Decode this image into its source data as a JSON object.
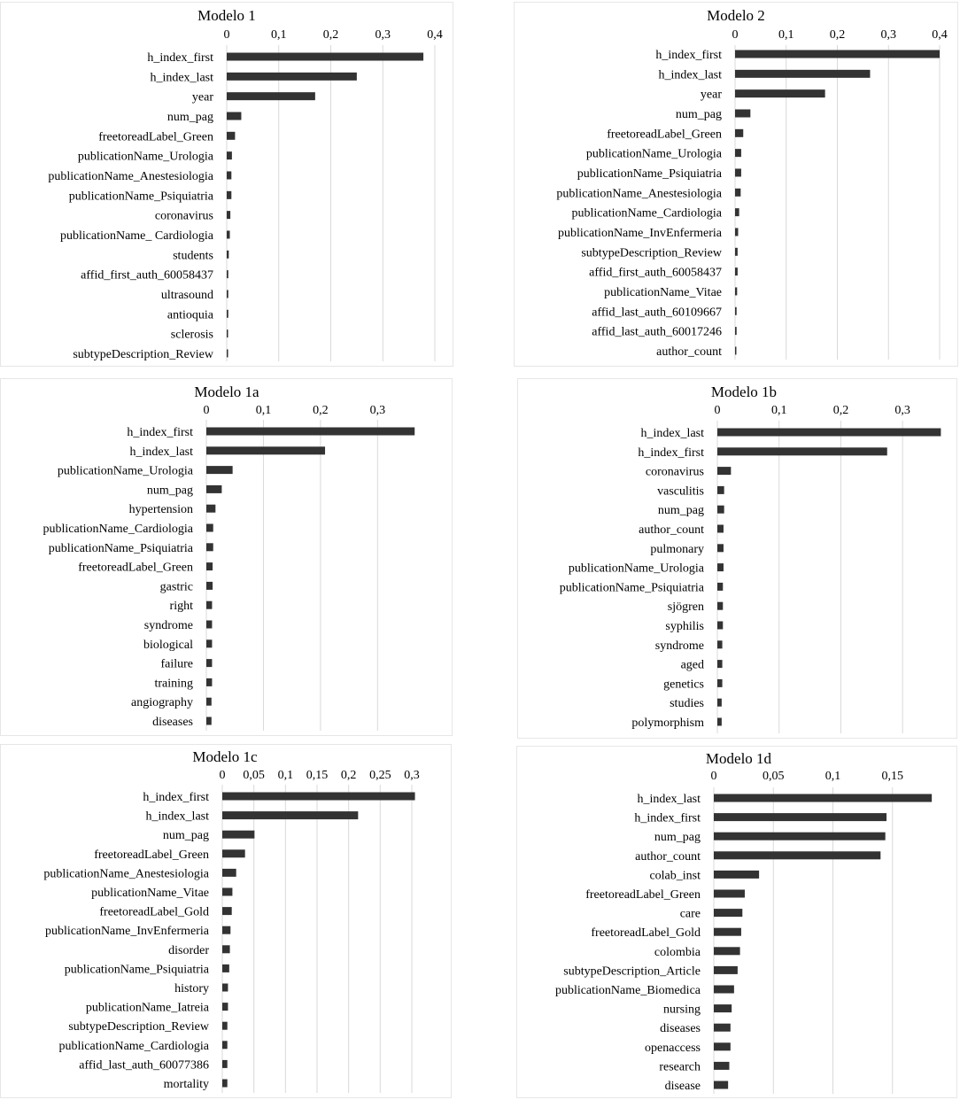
{
  "chart_data": [
    {
      "type": "bar",
      "orientation": "horizontal",
      "title": "Modelo 1",
      "xlim": [
        0,
        0.4
      ],
      "ticks": [
        0,
        0.1,
        0.2,
        0.3,
        0.4
      ],
      "tick_labels": [
        "0",
        "0,1",
        "0,2",
        "0,3",
        "0,4"
      ],
      "categories": [
        "h_index_first",
        "h_index_last",
        "year",
        "num_pag",
        "freetoreadLabel_Green",
        "publicationName_Urologia",
        "publicationName_Anestesiologia",
        "publicationName_Psiquiatria",
        "coronavirus",
        "publicationName_ Cardiologia",
        "students",
        "affid_first_auth_60058437",
        "ultrasound",
        "antioquia",
        "sclerosis",
        "subtypeDescription_Review"
      ],
      "values": [
        0.378,
        0.25,
        0.17,
        0.028,
        0.016,
        0.01,
        0.009,
        0.009,
        0.007,
        0.006,
        0.004,
        0.003,
        0.003,
        0.003,
        0.002,
        0.002
      ]
    },
    {
      "type": "bar",
      "orientation": "horizontal",
      "title": "Modelo 2",
      "xlim": [
        0,
        0.4
      ],
      "ticks": [
        0,
        0.1,
        0.2,
        0.3,
        0.4
      ],
      "tick_labels": [
        "0",
        "0,1",
        "0,2",
        "0,3",
        "0,4"
      ],
      "categories": [
        "h_index_first",
        "h_index_last",
        "year",
        "num_pag",
        "freetoreadLabel_Green",
        "publicationName_Urologia",
        "publicationName_Psiquiatria",
        "publicationName_Anestesiologia",
        "publicationName_Cardiologia",
        "publicationName_InvEnfermeria",
        "subtypeDescription_Review",
        "affid_first_auth_60058437",
        "publicationName_Vitae",
        "affid_last_auth_60109667",
        "affid_last_auth_60017246",
        "author_count"
      ],
      "values": [
        0.4,
        0.264,
        0.176,
        0.03,
        0.016,
        0.012,
        0.012,
        0.011,
        0.008,
        0.006,
        0.005,
        0.005,
        0.004,
        0.003,
        0.003,
        0.002
      ]
    },
    {
      "type": "bar",
      "orientation": "horizontal",
      "title": "Modelo 1a",
      "xlim": [
        0,
        0.36
      ],
      "ticks": [
        0,
        0.1,
        0.2,
        0.3
      ],
      "tick_labels": [
        "0",
        "0,1",
        "0,2",
        "0,3"
      ],
      "categories": [
        "h_index_first",
        "h_index_last",
        "publicationName_Urologia",
        "num_pag",
        "hypertension",
        "publicationName_Cardiologia",
        "publicationName_Psiquiatria",
        "freetoreadLabel_Green",
        "gastric",
        "right",
        "syndrome",
        "biological",
        "failure",
        "training",
        "angiography",
        "diseases"
      ],
      "values": [
        0.365,
        0.208,
        0.046,
        0.027,
        0.016,
        0.012,
        0.012,
        0.011,
        0.011,
        0.01,
        0.01,
        0.01,
        0.01,
        0.01,
        0.009,
        0.009
      ]
    },
    {
      "type": "bar",
      "orientation": "horizontal",
      "title": "Modelo 1b",
      "xlim": [
        0,
        0.36
      ],
      "ticks": [
        0,
        0.1,
        0.2,
        0.3
      ],
      "tick_labels": [
        "0",
        "0,1",
        "0,2",
        "0,3"
      ],
      "categories": [
        "h_index_last",
        "h_index_first",
        "coronavirus",
        "vasculitis",
        "num_pag",
        "author_count",
        "pulmonary",
        "publicationName_Urologia",
        "publicationName_Psiquiatria",
        "sjögren",
        "syphilis",
        "syndrome",
        "aged",
        "genetics",
        "studies",
        "polymorphism"
      ],
      "values": [
        0.362,
        0.275,
        0.022,
        0.011,
        0.011,
        0.01,
        0.01,
        0.01,
        0.009,
        0.009,
        0.009,
        0.008,
        0.008,
        0.008,
        0.007,
        0.007
      ]
    },
    {
      "type": "bar",
      "orientation": "horizontal",
      "title": "Modelo 1c",
      "xlim": [
        0,
        0.3
      ],
      "ticks": [
        0,
        0.05,
        0.1,
        0.15,
        0.2,
        0.25,
        0.3
      ],
      "tick_labels": [
        "0",
        "0,05",
        "0,1",
        "0,15",
        "0,2",
        "0,25",
        "0,3"
      ],
      "categories": [
        "h_index_first",
        "h_index_last",
        "num_pag",
        "freetoreadLabel_Green",
        "publicationName_Anestesiologia",
        "publicationName_Vitae",
        "freetoreadLabel_Gold",
        "publicationName_InvEnfermeria",
        "disorder",
        "publicationName_Psiquiatria",
        "history",
        "publicationName_Iatreia",
        "subtypeDescription_Review",
        "publicationName_Cardiologia",
        "affid_last_auth_60077386",
        "mortality"
      ],
      "values": [
        0.305,
        0.215,
        0.051,
        0.036,
        0.022,
        0.016,
        0.015,
        0.013,
        0.012,
        0.011,
        0.009,
        0.009,
        0.008,
        0.008,
        0.008,
        0.008
      ]
    },
    {
      "type": "bar",
      "orientation": "horizontal",
      "title": "Modelo 1d",
      "xlim": [
        0,
        0.2
      ],
      "ticks": [
        0,
        0.05,
        0.1,
        0.15
      ],
      "tick_labels": [
        "0",
        "0,05",
        "0,1",
        "0,15"
      ],
      "categories": [
        "h_index_last",
        "h_index_first",
        "num_pag",
        "author_count",
        "colab_inst",
        "freetoreadLabel_Green",
        "care",
        "freetoreadLabel_Gold",
        "colombia",
        "subtypeDescription_Article",
        "publicationName_Biomedica",
        "nursing",
        "diseases",
        "openaccess",
        "research",
        "disease"
      ],
      "values": [
        0.183,
        0.145,
        0.144,
        0.14,
        0.038,
        0.026,
        0.024,
        0.023,
        0.022,
        0.02,
        0.017,
        0.015,
        0.014,
        0.014,
        0.013,
        0.012
      ]
    }
  ]
}
